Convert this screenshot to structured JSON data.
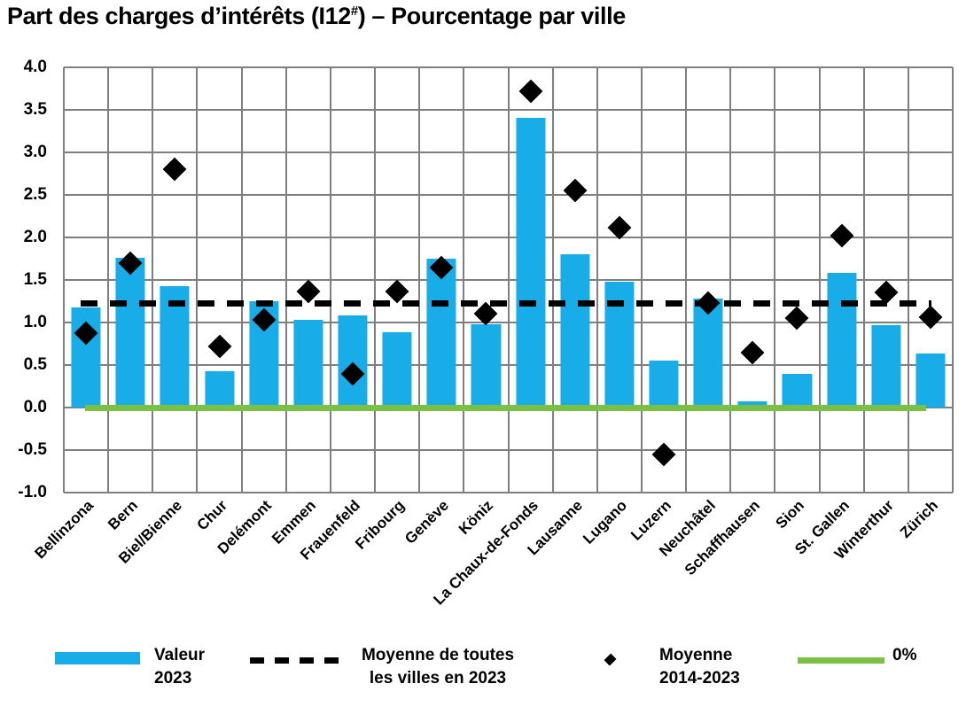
{
  "title": {
    "prefix": "Part des charges d’intérêts (I12",
    "superscript": "#",
    "suffix": ") – Pourcentage par ville"
  },
  "colors": {
    "bar_blue": "#18ade8",
    "zero_green": "#79c143",
    "series_black": "#000000",
    "grid_gray": "#7f7f7f"
  },
  "chart_data": {
    "type": "bar",
    "title": "Part des charges d’intérêts (I12#) – Pourcentage par ville",
    "categories": [
      "Bellinzona",
      "Bern",
      "Biel/Bienne",
      "Chur",
      "Delémont",
      "Emmen",
      "Frauenfeld",
      "Fribourg",
      "Genève",
      "Köniz",
      "La Chaux-de-Fonds",
      "Lausanne",
      "Lugano",
      "Luzern",
      "Neuchâtel",
      "Schaffhausen",
      "Sion",
      "St. Gallen",
      "Winterthur",
      "Zürich"
    ],
    "series": [
      {
        "name": "Valeur 2023",
        "type": "bar",
        "color": "#18ade8",
        "values": [
          1.18,
          1.76,
          1.43,
          0.43,
          1.25,
          1.03,
          1.08,
          0.89,
          1.75,
          0.98,
          3.41,
          1.8,
          1.48,
          0.55,
          1.28,
          0.07,
          0.4,
          1.58,
          0.97,
          0.64
        ]
      },
      {
        "name": "Moyenne 2014-2023",
        "type": "scatter",
        "marker": "diamond",
        "color": "#000000",
        "values": [
          0.87,
          1.7,
          2.8,
          0.72,
          1.03,
          1.36,
          0.4,
          1.36,
          1.65,
          1.1,
          3.72,
          2.55,
          2.11,
          -0.55,
          1.23,
          0.65,
          1.05,
          2.02,
          1.35,
          1.06
        ]
      },
      {
        "name": "Moyenne de toutes les villes en 2023",
        "type": "hline",
        "style": "dashed",
        "color": "#000000",
        "value": 1.22
      },
      {
        "name": "0%",
        "type": "hline",
        "style": "solid",
        "color": "#79c143",
        "value": 0
      }
    ],
    "ylim": [
      -1.0,
      4.0
    ],
    "ytick_step": 0.5,
    "ytick_labels": [
      "4.0",
      "3.5",
      "3.0",
      "2.5",
      "2.0",
      "1.5",
      "1.0",
      "0.5",
      "0.0",
      "-0.5",
      "-1.0"
    ],
    "xlabel": "",
    "ylabel": "",
    "grid": true,
    "legend_position": "bottom"
  },
  "legend": {
    "items": [
      {
        "swatch": "bar-swatch",
        "lines": [
          "Valeur",
          "2023"
        ]
      },
      {
        "swatch": "dashed-line",
        "lines": [
          "Moyenne de toutes",
          "les villes en 2023"
        ]
      },
      {
        "swatch": "diamond",
        "lines": [
          "Moyenne",
          "2014-2023"
        ]
      },
      {
        "swatch": "zero-line",
        "lines": [
          "0%"
        ]
      }
    ]
  }
}
